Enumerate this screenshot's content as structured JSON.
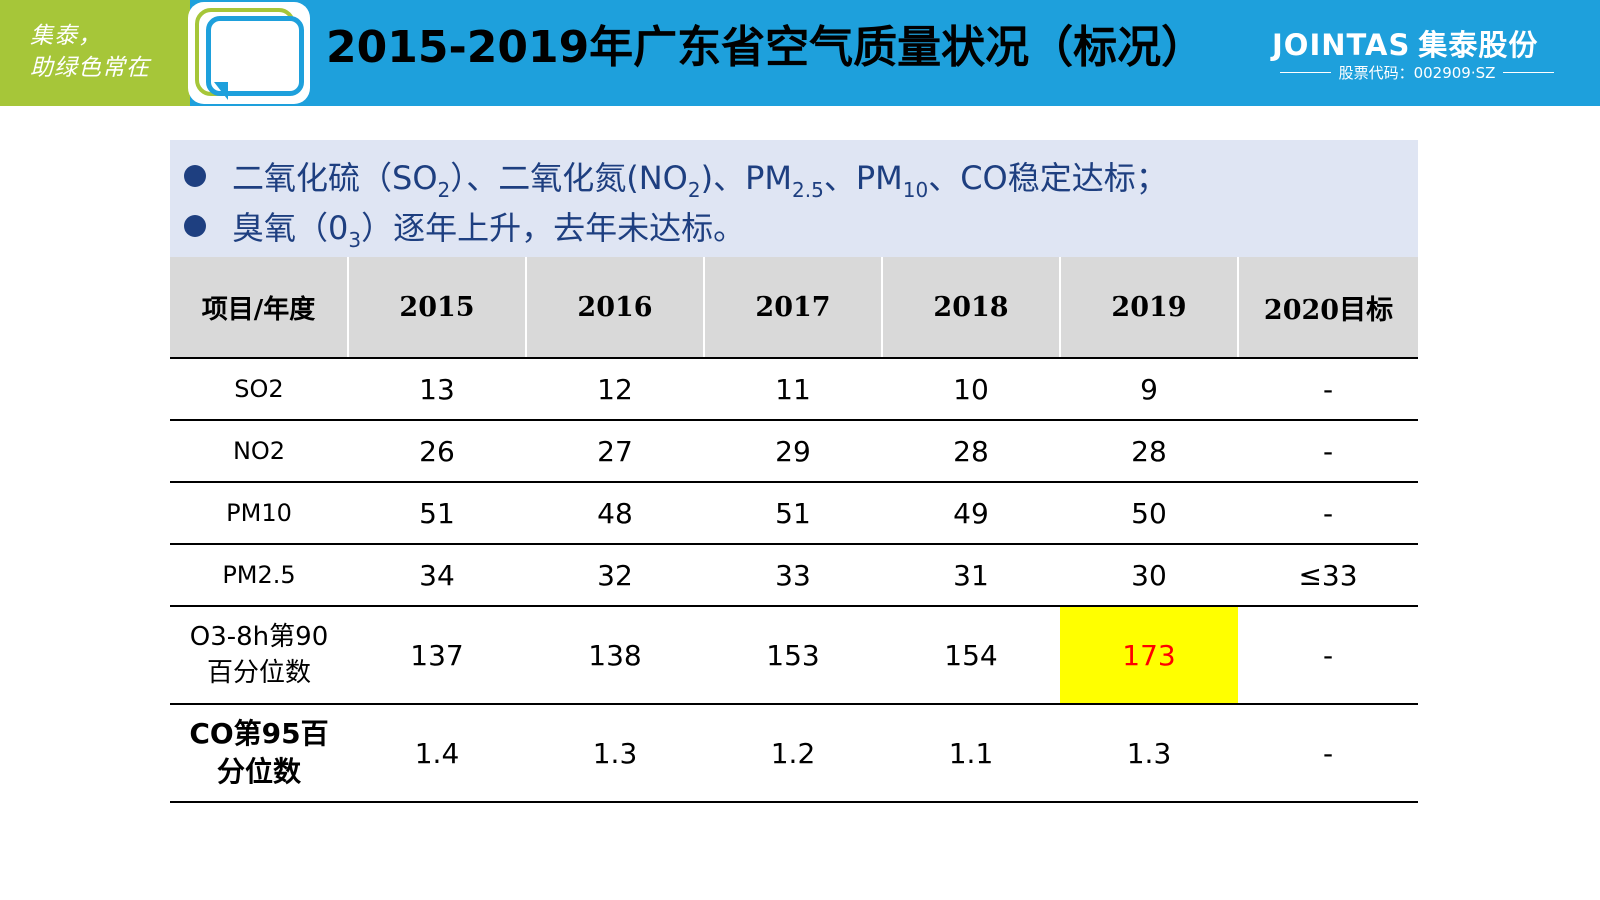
{
  "header": {
    "slogan_line1": "集泰，",
    "slogan_line2": "助绿色常在",
    "title": "2015-2019年广东省空气质量状况（标况）",
    "brand_en": "JOINTAS",
    "brand_cn": "集泰股份",
    "stock_code": "股票代码：002909·SZ"
  },
  "colors": {
    "header_blue": "#1ea0dc",
    "slogan_green": "#a6c639",
    "bullet_text": "#1e3f80",
    "bullet_bg": "#dfe5f3",
    "highlight_bg": "#ffff00",
    "highlight_text": "#ff0000"
  },
  "bullets": {
    "line1": {
      "p1": "二氧化硫（SO",
      "s1": "2",
      "p2": "）、二氧化氮(NO",
      "s2": "2",
      "p3": ")、PM",
      "s3": "2.5",
      "p4": "、PM",
      "s4": "10",
      "p5": "、CO稳定达标；"
    },
    "line2": {
      "p1": "臭氧（0",
      "s1": "3",
      "p2": "）逐年上升，去年未达标。"
    }
  },
  "table": {
    "headers": [
      "项目/年度",
      "2015",
      "2016",
      "2017",
      "2018",
      "2019",
      "2020目标"
    ],
    "rows": [
      {
        "label": "SO2",
        "values": [
          "13",
          "12",
          "11",
          "10",
          "9",
          "-"
        ]
      },
      {
        "label": "NO2",
        "values": [
          "26",
          "27",
          "29",
          "28",
          "28",
          "-"
        ]
      },
      {
        "label": "PM10",
        "values": [
          "51",
          "48",
          "51",
          "49",
          "50",
          "-"
        ]
      },
      {
        "label": "PM2.5",
        "values": [
          "34",
          "32",
          "33",
          "31",
          "30",
          "≤33"
        ]
      },
      {
        "label_line1": "O3-8h第90",
        "label_line2": "百分位数",
        "values": [
          "137",
          "138",
          "153",
          "154",
          "173",
          "-"
        ]
      },
      {
        "label_line1": "CO第95百",
        "label_line2": "分位数",
        "values": [
          "1.4",
          "1.3",
          "1.2",
          "1.1",
          "1.3",
          "-"
        ]
      }
    ]
  }
}
